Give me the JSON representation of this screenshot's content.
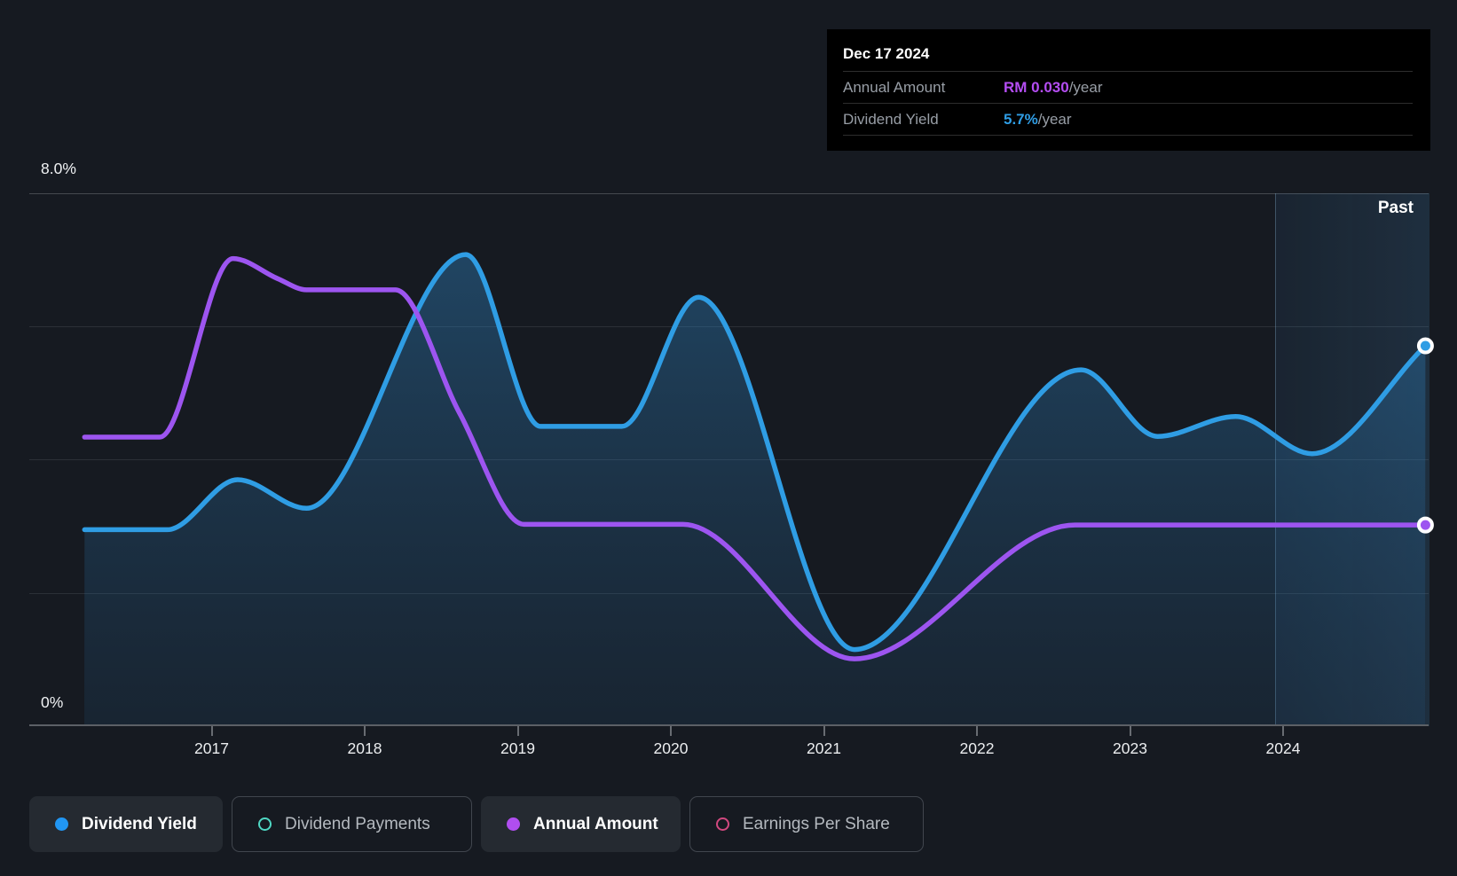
{
  "tooltip": {
    "date": "Dec 17 2024",
    "rows": [
      {
        "label": "Annual Amount",
        "value": "RM 0.030",
        "suffix": "/year",
        "color": "#b44df2"
      },
      {
        "label": "Dividend Yield",
        "value": "5.7%",
        "suffix": "/year",
        "color": "#2f9de4"
      }
    ]
  },
  "axis": {
    "y_top_label": "8.0%",
    "y_bottom_label": "0%",
    "x_ticks": [
      "2017",
      "2018",
      "2019",
      "2020",
      "2021",
      "2022",
      "2023",
      "2024"
    ]
  },
  "past_label": "Past",
  "legend": [
    {
      "label": "Dividend Yield",
      "key": "dividend-yield",
      "active": true,
      "marker": "filled",
      "color": "#2196f3"
    },
    {
      "label": "Dividend Payments",
      "key": "dividend-payments",
      "active": false,
      "marker": "ring",
      "color": "#4fd8c4"
    },
    {
      "label": "Annual Amount",
      "key": "annual-amount",
      "active": true,
      "marker": "filled",
      "color": "#b04ef0"
    },
    {
      "label": "Earnings Per Share",
      "key": "earnings-per-share",
      "active": false,
      "marker": "ring",
      "color": "#d1487f"
    }
  ],
  "colors": {
    "background": "#161a21",
    "tooltip_bg": "#000000",
    "blue_line": "#2f9de4",
    "purple_line": "#9d55f0",
    "area_gradient_top": "rgba(49,139,205,0.38)",
    "area_gradient_bottom": "rgba(38,100,150,0.14)"
  },
  "chart_data": {
    "type": "area",
    "title": "Dividend yield history",
    "x_domain": [
      2016.17,
      2024.93
    ],
    "y_domain_percent": [
      0,
      8
    ],
    "grid_percent_lines": [
      0,
      2,
      4,
      6,
      8
    ],
    "past_region_start_year": 2023.95,
    "legend_position": "bottom",
    "series": [
      {
        "name": "Dividend Yield",
        "color": "#2f9de4",
        "area": true,
        "end_marker": true,
        "y_units": "percent",
        "points": [
          [
            2016.17,
            2.95
          ],
          [
            2016.71,
            2.95
          ],
          [
            2017.17,
            3.7
          ],
          [
            2017.62,
            3.27
          ],
          [
            2018.66,
            7.08
          ],
          [
            2019.15,
            4.5
          ],
          [
            2019.68,
            4.5
          ],
          [
            2020.18,
            6.44
          ],
          [
            2021.2,
            1.15
          ],
          [
            2022.68,
            5.35
          ],
          [
            2023.18,
            4.35
          ],
          [
            2023.69,
            4.65
          ],
          [
            2024.19,
            4.09
          ],
          [
            2024.93,
            5.71
          ]
        ]
      },
      {
        "name": "Annual Amount",
        "color": "#9d55f0",
        "area": false,
        "end_marker": true,
        "y_units": "percent-display (RM 0.030/year at end)",
        "points": [
          [
            2016.17,
            4.34
          ],
          [
            2016.66,
            4.34
          ],
          [
            2017.14,
            7.02
          ],
          [
            2017.43,
            6.72
          ],
          [
            2017.62,
            6.55
          ],
          [
            2018.2,
            6.55
          ],
          [
            2018.62,
            4.7
          ],
          [
            2019.04,
            3.03
          ],
          [
            2020.08,
            3.03
          ],
          [
            2021.2,
            1.01
          ],
          [
            2022.64,
            3.02
          ],
          [
            2024.93,
            3.02
          ]
        ]
      }
    ]
  }
}
